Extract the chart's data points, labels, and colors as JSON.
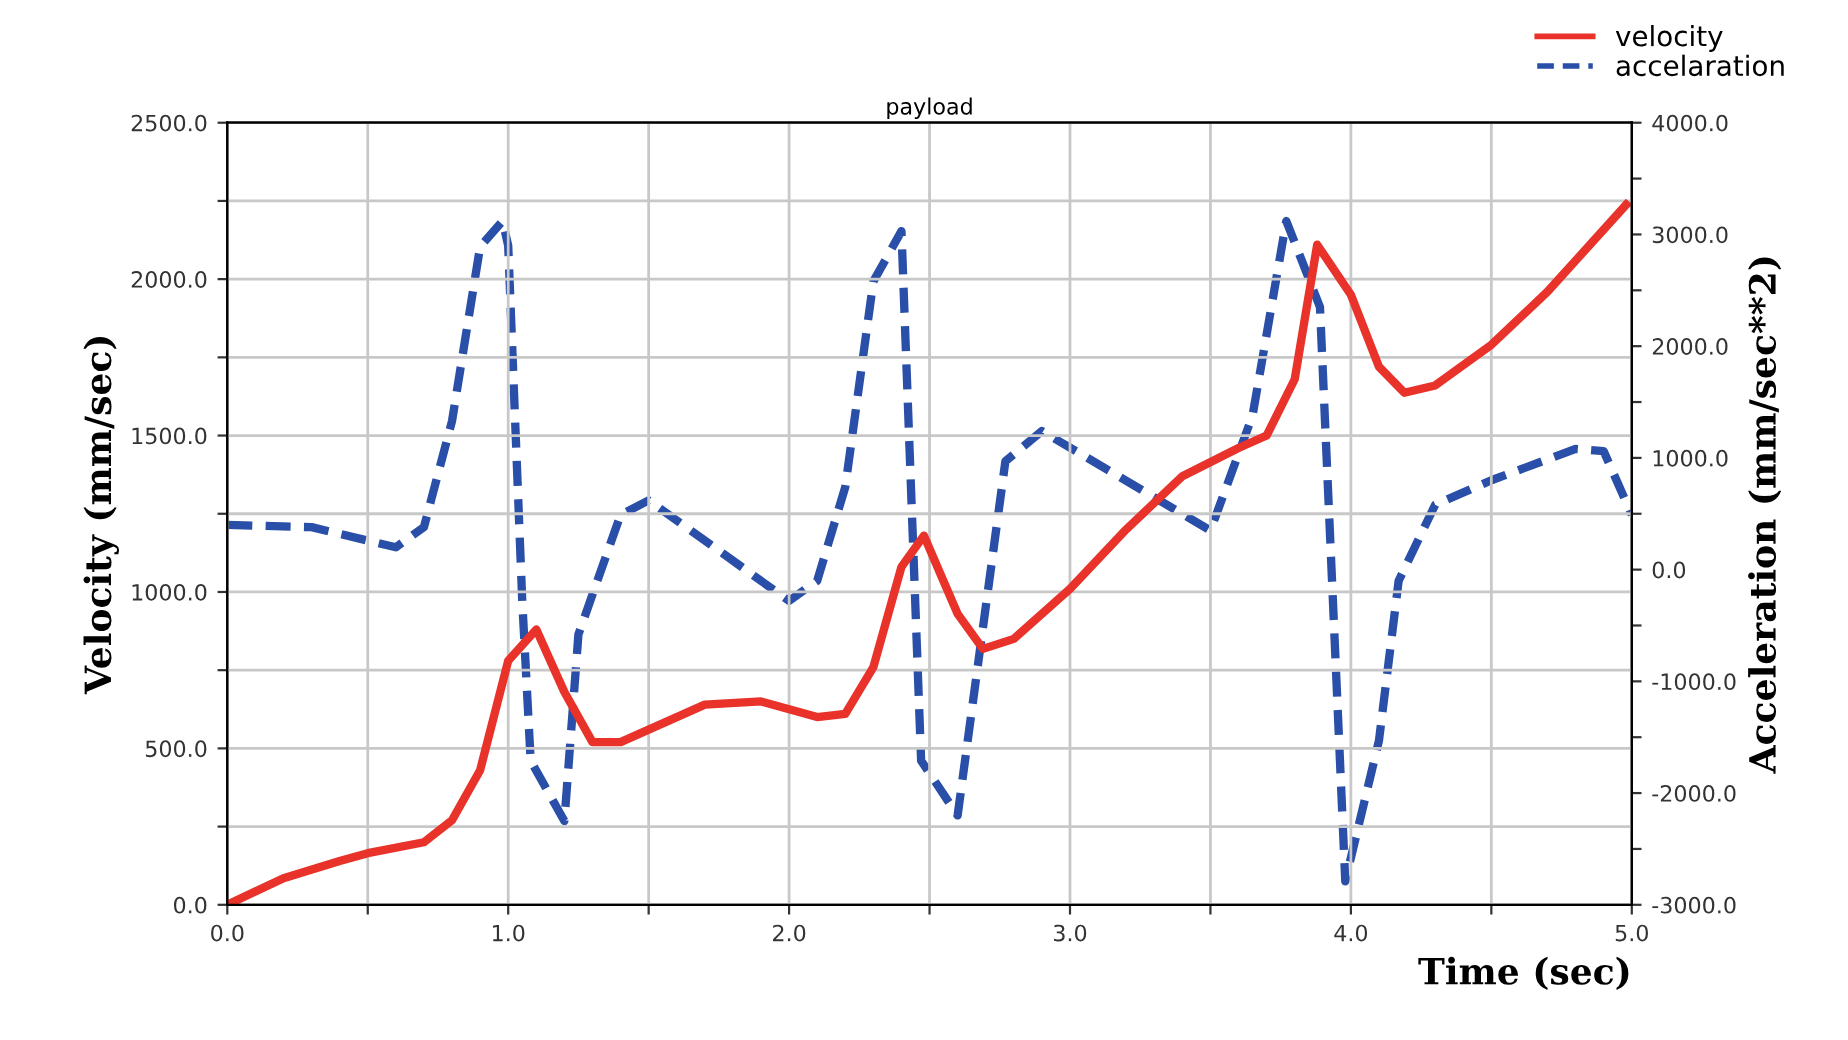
{
  "chart_data": {
    "type": "line",
    "title": "payload",
    "xlabel": "Time (sec)",
    "ylabel": "Velocity (mm/sec)",
    "y2label": "Acceleration (mm/sec**2)",
    "xlim": [
      0,
      5
    ],
    "ylim": [
      0,
      2500
    ],
    "y2lim": [
      -3000,
      4000
    ],
    "xticks": [
      {
        "value": 0,
        "label": "0.0"
      },
      {
        "value": 0.5,
        "label": null
      },
      {
        "value": 1,
        "label": "1.0"
      },
      {
        "value": 1.5,
        "label": null
      },
      {
        "value": 2,
        "label": "2.0"
      },
      {
        "value": 2.5,
        "label": null
      },
      {
        "value": 3,
        "label": "3.0"
      },
      {
        "value": 3.5,
        "label": null
      },
      {
        "value": 4,
        "label": "4.0"
      },
      {
        "value": 4.5,
        "label": null
      },
      {
        "value": 5,
        "label": "5.0"
      }
    ],
    "yticks": [
      {
        "value": 0,
        "label": "0.0"
      },
      {
        "value": 250,
        "label": null
      },
      {
        "value": 500,
        "label": "500.0"
      },
      {
        "value": 750,
        "label": null
      },
      {
        "value": 1000,
        "label": "1000.0"
      },
      {
        "value": 1250,
        "label": null
      },
      {
        "value": 1500,
        "label": "1500.0"
      },
      {
        "value": 1750,
        "label": null
      },
      {
        "value": 2000,
        "label": "2000.0"
      },
      {
        "value": 2250,
        "label": null
      },
      {
        "value": 2500,
        "label": "2500.0"
      }
    ],
    "y2ticks": [
      {
        "value": -3000,
        "label": "-3000.0"
      },
      {
        "value": -2500,
        "label": null
      },
      {
        "value": -2000,
        "label": "-2000.0"
      },
      {
        "value": -1500,
        "label": null
      },
      {
        "value": -1000,
        "label": "-1000.0"
      },
      {
        "value": -500,
        "label": null
      },
      {
        "value": 0,
        "label": "0.0"
      },
      {
        "value": 500,
        "label": null
      },
      {
        "value": 1000,
        "label": "1000.0"
      },
      {
        "value": 1500,
        "label": null
      },
      {
        "value": 2000,
        "label": "2000.0"
      },
      {
        "value": 2500,
        "label": null
      },
      {
        "value": 3000,
        "label": "3000.0"
      },
      {
        "value": 3500,
        "label": null
      },
      {
        "value": 4000,
        "label": "4000.0"
      }
    ],
    "grid": true,
    "legend": "top right",
    "series": [
      {
        "name": "velocity",
        "color": "#e8322a",
        "line_style": "solid",
        "x": [
          0,
          0.2,
          0.4,
          0.5,
          0.7,
          0.8,
          0.9,
          1.0,
          1.1,
          1.2,
          1.3,
          1.4,
          1.6,
          1.7,
          1.9,
          2.1,
          2.2,
          2.3,
          2.4,
          2.48,
          2.6,
          2.69,
          2.8,
          3.0,
          3.2,
          3.4,
          3.6,
          3.7,
          3.8,
          3.88,
          4.0,
          4.1,
          4.19,
          4.3,
          4.5,
          4.7,
          4.98
        ],
        "values": [
          0,
          85,
          140,
          165,
          200,
          270,
          430,
          780,
          880,
          680,
          520,
          520,
          600,
          640,
          650,
          600,
          610,
          760,
          1080,
          1180,
          930,
          818,
          850,
          1010,
          1200,
          1370,
          1460,
          1500,
          1680,
          2110,
          1950,
          1720,
          1637,
          1660,
          1790,
          1960,
          2238
        ]
      },
      {
        "name": "accelaration",
        "color": "#2a4fa8",
        "axis": "y2",
        "line_style": "dashed",
        "x": [
          0,
          0.3,
          0.6,
          0.7,
          0.8,
          0.9,
          0.98,
          1.0,
          1.05,
          1.08,
          1.2,
          1.25,
          1.4,
          1.5,
          2.0,
          2.1,
          2.2,
          2.3,
          2.4,
          2.47,
          2.6,
          2.77,
          2.9,
          3.5,
          3.65,
          3.77,
          3.89,
          3.98,
          4.1,
          4.17,
          4.3,
          4.5,
          4.8,
          4.9,
          5.0
        ],
        "values": [
          400,
          380,
          200,
          380,
          1330,
          2890,
          3120,
          2900,
          -280,
          -1710,
          -2250,
          -580,
          490,
          620,
          -280,
          -100,
          740,
          2580,
          3030,
          -1710,
          -2200,
          970,
          1240,
          350,
          1380,
          3120,
          2350,
          -2790,
          -1530,
          -100,
          580,
          800,
          1080,
          1060,
          490
        ]
      }
    ]
  }
}
